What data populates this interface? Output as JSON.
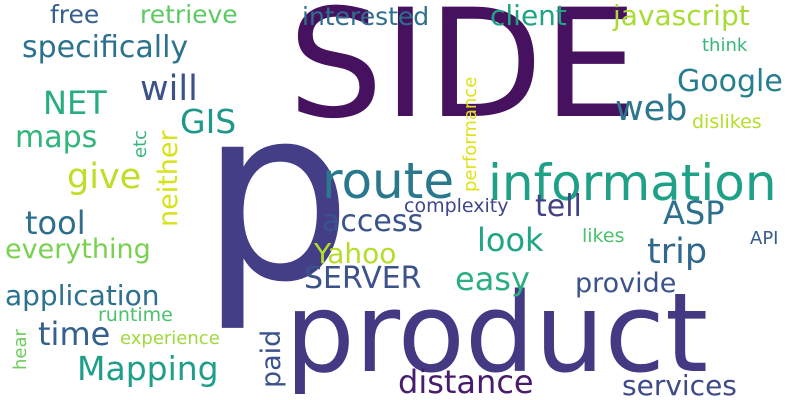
{
  "words": [
    {
      "text": "SIDE",
      "color": "#46125f"
    },
    {
      "text": "p",
      "color": "#433e85"
    },
    {
      "text": "product",
      "color": "#443a83"
    },
    {
      "text": "information",
      "color": "#1fa187"
    },
    {
      "text": "route",
      "color": "#2a788e"
    },
    {
      "text": "specifically",
      "color": "#2c718e"
    },
    {
      "text": "free",
      "color": "#355f8d"
    },
    {
      "text": "retrieve",
      "color": "#5ec962"
    },
    {
      "text": "interested",
      "color": "#2e6e8e"
    },
    {
      "text": "client",
      "color": "#20a486"
    },
    {
      "text": "javascript",
      "color": "#a8db34"
    },
    {
      "text": "will",
      "color": "#3b528b"
    },
    {
      "text": "think",
      "color": "#35b779"
    },
    {
      "text": "Google",
      "color": "#277f8e"
    },
    {
      "text": "web",
      "color": "#2a778e"
    },
    {
      "text": "dislikes",
      "color": "#b5de2b"
    },
    {
      "text": "NET",
      "color": "#27ad81"
    },
    {
      "text": "GIS",
      "color": "#1f988b"
    },
    {
      "text": "maps",
      "color": "#31b57b"
    },
    {
      "text": "give",
      "color": "#bddf26"
    },
    {
      "text": "etc",
      "color": "#35b779"
    },
    {
      "text": "neither",
      "color": "#d8e219"
    },
    {
      "text": "performance",
      "color": "#dde318"
    },
    {
      "text": "tool",
      "color": "#2d708e"
    },
    {
      "text": "everything",
      "color": "#7ad151"
    },
    {
      "text": "access",
      "color": "#3b528b"
    },
    {
      "text": "complexity",
      "color": "#3f4788"
    },
    {
      "text": "tell",
      "color": "#424086"
    },
    {
      "text": "ASP",
      "color": "#2d708e"
    },
    {
      "text": "look",
      "color": "#21a685"
    },
    {
      "text": "Yahoo",
      "color": "#b5de2b"
    },
    {
      "text": "likes",
      "color": "#4ac16d"
    },
    {
      "text": "API",
      "color": "#365c8d"
    },
    {
      "text": "trip",
      "color": "#31688e"
    },
    {
      "text": "SERVER",
      "color": "#3b528b"
    },
    {
      "text": "easy",
      "color": "#2ab07f"
    },
    {
      "text": "provide",
      "color": "#3b528b"
    },
    {
      "text": "application",
      "color": "#2c718e"
    },
    {
      "text": "runtime",
      "color": "#4ac16d"
    },
    {
      "text": "time",
      "color": "#355f8d"
    },
    {
      "text": "paid",
      "color": "#3b528b"
    },
    {
      "text": "hear",
      "color": "#6ccd5a"
    },
    {
      "text": "experience",
      "color": "#9fda3a"
    },
    {
      "text": "Mapping",
      "color": "#1f9e89"
    },
    {
      "text": "distance",
      "color": "#481b6d"
    },
    {
      "text": "services",
      "color": "#3e4a89"
    }
  ]
}
